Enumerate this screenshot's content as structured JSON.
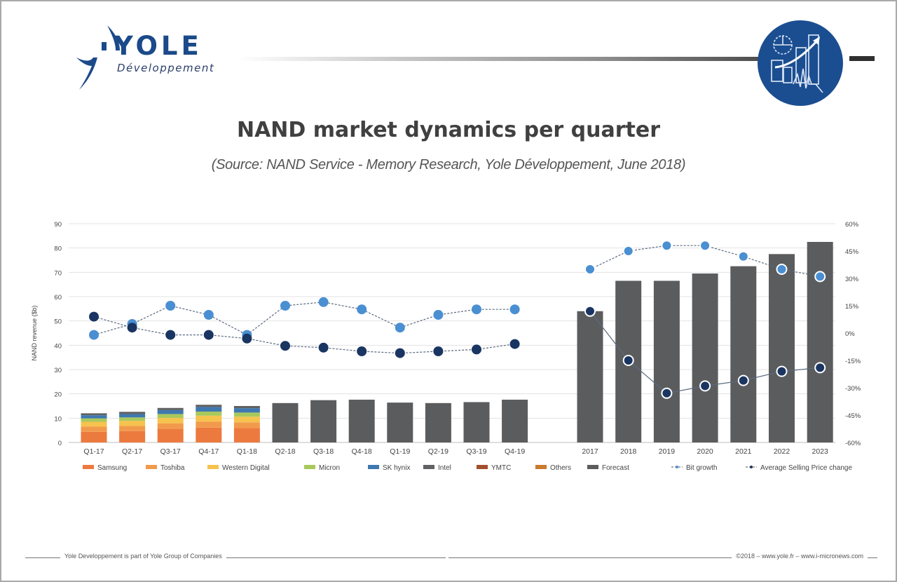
{
  "brand": {
    "logo_name": "YOLE",
    "logo_subtitle": "Développement",
    "brand_color": "#1b4a8a"
  },
  "header": {
    "title": "NAND market dynamics per quarter",
    "subtitle": "(Source: NAND Service - Memory Research, Yole Développement, June 2018)"
  },
  "footer": {
    "left_text": "Yole Developpement is part of Yole Group of Companies",
    "right_text": "©2018 – www.yole.fr – www.i-micronews.com"
  },
  "chart_data": {
    "type": "bar",
    "title": "NAND market dynamics per quarter",
    "ylabel": "NAND revenue ($b)",
    "ylim": [
      0,
      90
    ],
    "yticks": [
      "0",
      "10",
      "20",
      "30",
      "40",
      "50",
      "60",
      "70",
      "80",
      "90"
    ],
    "y2lim": [
      -60,
      60
    ],
    "y2ticks": [
      "-60%",
      "-45%",
      "-30%",
      "-15%",
      "0%",
      "15%",
      "30%",
      "45%",
      "60%"
    ],
    "grid": true,
    "legend_position": "bottom",
    "colors": {
      "Samsung": "#ec7a3f",
      "Toshiba": "#f29a4c",
      "Western Digital": "#f6c34e",
      "Micron": "#a9c85b",
      "SK hynix": "#3f78b0",
      "Intel": "#5f6163",
      "YMTC": "#a34f2e",
      "Others": "#c97a2d",
      "Forecast": "#5b5c5e",
      "Bit growth": "#4a8fd2",
      "Average Selling Price change": "#1a3561"
    },
    "legend": [
      "Samsung",
      "Toshiba",
      "Western Digital",
      "Micron",
      "SK hynix",
      "Intel",
      "YMTC",
      "Others",
      "Forecast",
      "Bit growth",
      "Average Selling Price change"
    ],
    "quarterly": {
      "categories": [
        "Q1-17",
        "Q2-17",
        "Q3-17",
        "Q4-17",
        "Q1-18",
        "Q2-18",
        "Q3-18",
        "Q4-18",
        "Q1-19",
        "Q2-19",
        "Q3-19",
        "Q4-19"
      ],
      "stacked_actuals": [
        {
          "Samsung": 4.4,
          "Toshiba": 2.1,
          "Western Digital": 2.0,
          "Micron": 1.4,
          "SK hynix": 1.3,
          "Intel": 0.8
        },
        {
          "Samsung": 4.7,
          "Toshiba": 2.1,
          "Western Digital": 2.1,
          "Micron": 1.4,
          "SK hynix": 1.4,
          "Intel": 0.9
        },
        {
          "Samsung": 5.6,
          "Toshiba": 2.3,
          "Western Digital": 2.2,
          "Micron": 1.6,
          "SK hynix": 1.6,
          "Intel": 0.9
        },
        {
          "Samsung": 6.1,
          "Toshiba": 2.5,
          "Western Digital": 2.4,
          "Micron": 1.7,
          "SK hynix": 1.9,
          "Intel": 0.9
        },
        {
          "Samsung": 5.9,
          "Toshiba": 2.4,
          "Western Digital": 2.3,
          "Micron": 1.7,
          "SK hynix": 1.8,
          "Intel": 0.9
        }
      ],
      "totals": [
        12.0,
        12.6,
        14.2,
        15.5,
        15.0,
        16.2,
        17.4,
        17.6,
        16.4,
        16.2,
        16.6,
        17.6
      ],
      "forecast_from_index": 5,
      "bit_growth_pct": [
        -1,
        5,
        15,
        10,
        -1,
        15,
        17,
        13,
        3,
        10,
        13,
        13
      ],
      "asp_change_pct": [
        9,
        3,
        -1,
        -1,
        -3,
        -7,
        -8,
        -10,
        -11,
        -10,
        -9,
        -6
      ]
    },
    "annual": {
      "categories": [
        "2017",
        "2018",
        "2019",
        "2020",
        "2021",
        "2022",
        "2023"
      ],
      "totals": [
        54,
        66.5,
        66.5,
        69.5,
        72.5,
        77.5,
        82.5
      ],
      "bit_growth_pct": [
        35,
        45,
        48,
        48,
        42,
        35,
        31
      ],
      "asp_change_pct": [
        12,
        -15,
        -33,
        -29,
        -26,
        -21,
        -19
      ]
    }
  }
}
